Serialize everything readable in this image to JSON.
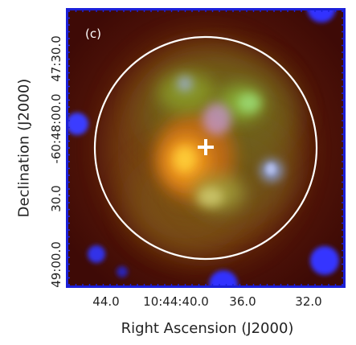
{
  "panel_label": "(c)",
  "x_axis": {
    "label": "Right Ascension (J2000)",
    "ticks": [
      "44.0",
      "10:44:40.0",
      "36.0",
      "32.0"
    ]
  },
  "y_axis": {
    "label": "Declination (J2000)",
    "ticks": [
      "47:30.0",
      "-60:48:00.0",
      "30.0",
      "49:00.0"
    ]
  },
  "colors": {
    "frame": "#1c20d8",
    "circle": "#ffffff",
    "background": "#4a0d06"
  }
}
